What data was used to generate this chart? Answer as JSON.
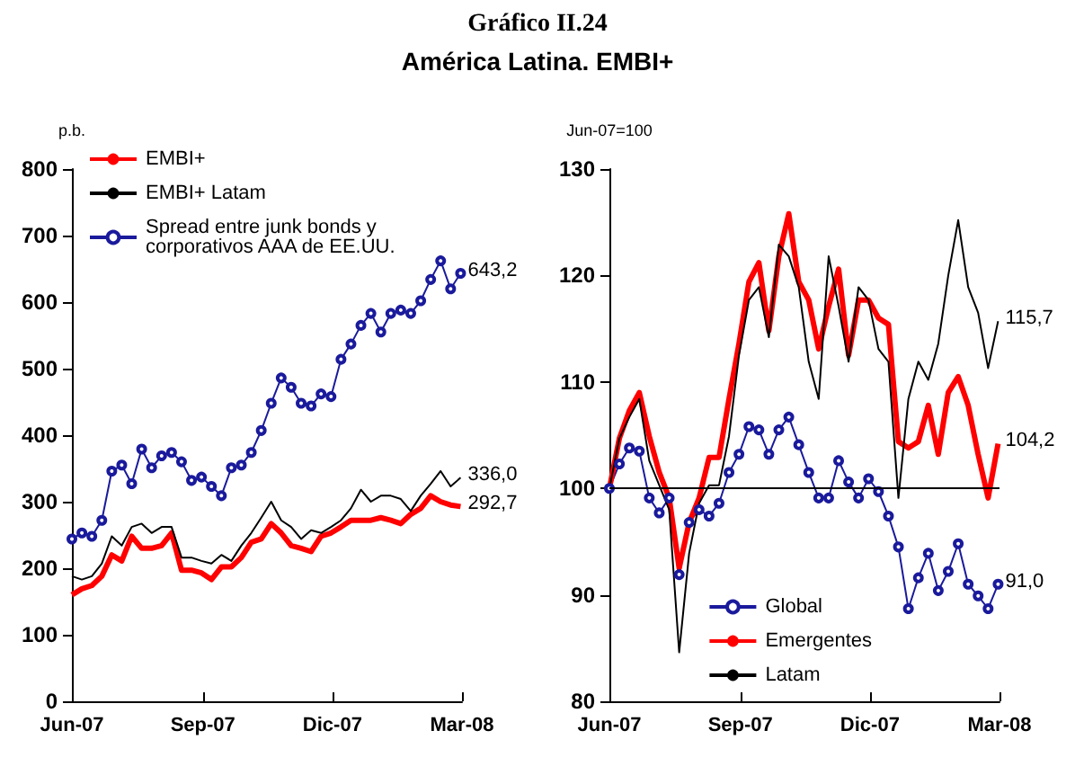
{
  "chart_data": [
    {
      "type": "line",
      "title": "Gráfico II.24",
      "subtitle": "América Latina. EMBI+",
      "ylabel": "p.b.",
      "x": [
        "2007-06-01",
        "2007-06-08",
        "2007-06-15",
        "2007-06-22",
        "2007-06-29",
        "2007-07-06",
        "2007-07-13",
        "2007-07-20",
        "2007-07-27",
        "2007-08-03",
        "2007-08-10",
        "2007-08-17",
        "2007-08-24",
        "2007-08-31",
        "2007-09-07",
        "2007-09-14",
        "2007-09-21",
        "2007-09-28",
        "2007-10-05",
        "2007-10-12",
        "2007-10-19",
        "2007-10-26",
        "2007-11-02",
        "2007-11-09",
        "2007-11-16",
        "2007-11-23",
        "2007-11-30",
        "2007-12-07",
        "2007-12-14",
        "2007-12-21",
        "2007-12-28",
        "2008-01-04",
        "2008-01-11",
        "2008-01-18",
        "2008-01-25",
        "2008-02-01",
        "2008-02-08",
        "2008-02-15",
        "2008-02-22",
        "2008-02-29"
      ],
      "series": [
        {
          "name": "EMBI+",
          "color": "#ff0000",
          "values": [
            160,
            169,
            174,
            188,
            220,
            211,
            248,
            230,
            230,
            234,
            253,
            197,
            197,
            193,
            183,
            202,
            202,
            216,
            239,
            244,
            267,
            253,
            234,
            230,
            225,
            248,
            253,
            262,
            272,
            272,
            272,
            276,
            272,
            267,
            281,
            290,
            309,
            300,
            295,
            292.7
          ]
        },
        {
          "name": "EMBI+ Latam",
          "color": "#000000",
          "values": [
            188,
            183,
            188,
            207,
            248,
            234,
            262,
            267,
            253,
            262,
            262,
            216,
            216,
            211,
            207,
            220,
            211,
            234,
            253,
            276,
            300,
            272,
            262,
            244,
            257,
            253,
            262,
            272,
            290,
            318,
            300,
            309,
            309,
            304,
            286,
            309,
            327,
            346,
            323,
            336.0
          ]
        },
        {
          "name": "Spread entre junk bonds y corporativos AAA de EE.UU.",
          "color": "#1a1a9c",
          "marker": "circle",
          "values": [
            244,
            253,
            248,
            272,
            346,
            355,
            327,
            379,
            351,
            369,
            374,
            360,
            332,
            337,
            323,
            309,
            351,
            355,
            374,
            407,
            448,
            486,
            472,
            448,
            444,
            462,
            458,
            514,
            537,
            565,
            583,
            555,
            583,
            588,
            583,
            602,
            634,
            662,
            620,
            643.2
          ]
        }
      ],
      "xlim": [
        "2007-06-01",
        "2008-03-01"
      ],
      "xticks": [
        {
          "value": "2007-06-01",
          "label": "Jun-07"
        },
        {
          "value": "2007-09-01",
          "label": "Sep-07"
        },
        {
          "value": "2007-12-01",
          "label": "Dic-07"
        },
        {
          "value": "2008-03-01",
          "label": "Mar-08"
        }
      ],
      "ylim": [
        0,
        800
      ],
      "yticks": [
        0,
        100,
        200,
        300,
        400,
        500,
        600,
        700,
        800
      ],
      "annotations": [
        {
          "text": "643,2",
          "x": "2008-02-29",
          "y": 643.2
        },
        {
          "text": "336,0",
          "x": "2008-02-29",
          "y": 336.0
        },
        {
          "text": "292,7",
          "x": "2008-02-29",
          "y": 292.7
        }
      ],
      "legend": "top left",
      "grid": false,
      "marker": "none"
    },
    {
      "type": "line",
      "ylabel": "Jun-07=100",
      "x": [
        "2007-06-01",
        "2007-06-08",
        "2007-06-15",
        "2007-06-22",
        "2007-06-29",
        "2007-07-06",
        "2007-07-13",
        "2007-07-20",
        "2007-07-27",
        "2007-08-03",
        "2007-08-10",
        "2007-08-17",
        "2007-08-24",
        "2007-08-31",
        "2007-09-07",
        "2007-09-14",
        "2007-09-21",
        "2007-09-28",
        "2007-10-05",
        "2007-10-12",
        "2007-10-19",
        "2007-10-26",
        "2007-11-02",
        "2007-11-09",
        "2007-11-16",
        "2007-11-23",
        "2007-11-30",
        "2007-12-07",
        "2007-12-14",
        "2007-12-21",
        "2007-12-28",
        "2008-01-04",
        "2008-01-11",
        "2008-01-18",
        "2008-01-25",
        "2008-02-01",
        "2008-02-08",
        "2008-02-15",
        "2008-02-22",
        "2008-02-29"
      ],
      "series": [
        {
          "name": "Global",
          "color": "#1a1a9c",
          "marker": "circle",
          "values": [
            100,
            102.3,
            103.8,
            103.5,
            99.1,
            97.7,
            99.1,
            91.9,
            96.8,
            98,
            97.4,
            98.6,
            101.5,
            103.2,
            105.8,
            105.5,
            103.2,
            105.5,
            106.7,
            104.1,
            101.5,
            99.1,
            99.1,
            102.6,
            100.6,
            99.1,
            100.9,
            99.7,
            97.4,
            94.5,
            88.7,
            91.6,
            93.9,
            90.4,
            92.2,
            94.8,
            91,
            89.9,
            88.7,
            91.0
          ]
        },
        {
          "name": "Emergentes",
          "color": "#ff0000",
          "values": [
            100,
            104.7,
            107.3,
            109,
            104.9,
            101.5,
            99.1,
            92.5,
            96.8,
            99.1,
            102.9,
            102.9,
            108.4,
            113.6,
            119.4,
            121.2,
            114.8,
            121.8,
            125.8,
            119.4,
            117.7,
            113.1,
            117.1,
            120.6,
            112.5,
            117.7,
            117.7,
            116,
            115.4,
            104.4,
            103.8,
            104.4,
            107.8,
            103.2,
            109,
            110.5,
            107.8,
            103.2,
            99.1,
            104.2
          ]
        },
        {
          "name": "Latam",
          "color": "#000000",
          "values": [
            100,
            104.7,
            106.7,
            108.4,
            102.6,
            100.3,
            98,
            84.6,
            93.9,
            98.6,
            100.3,
            100.3,
            104.9,
            112.5,
            117.7,
            118.9,
            114.2,
            122.9,
            121.8,
            118.9,
            111.9,
            108.4,
            121.8,
            117.1,
            111.9,
            118.9,
            117.7,
            113.1,
            111.9,
            99.1,
            108.4,
            111.9,
            110.2,
            113.6,
            120,
            125.2,
            118.9,
            116.5,
            111.3,
            115.7
          ]
        }
      ],
      "xlim": [
        "2007-06-01",
        "2008-03-01"
      ],
      "xticks": [
        {
          "value": "2007-06-01",
          "label": "Jun-07"
        },
        {
          "value": "2007-09-01",
          "label": "Sep-07"
        },
        {
          "value": "2007-12-01",
          "label": "Dic-07"
        },
        {
          "value": "2008-03-01",
          "label": "Mar-08"
        }
      ],
      "ylim": [
        80,
        130
      ],
      "yticks": [
        80,
        90,
        100,
        110,
        120,
        130
      ],
      "ref_lines": [
        {
          "axis": "y",
          "value": 100,
          "color": "#000000"
        }
      ],
      "annotations": [
        {
          "text": "115,7",
          "x": "2008-02-29",
          "y": 115.7
        },
        {
          "text": "104,2",
          "x": "2008-02-29",
          "y": 104.2
        },
        {
          "text": "91,0",
          "x": "2008-02-29",
          "y": 91.0
        }
      ],
      "legend": "bottom",
      "grid": false,
      "marker": "none"
    }
  ]
}
